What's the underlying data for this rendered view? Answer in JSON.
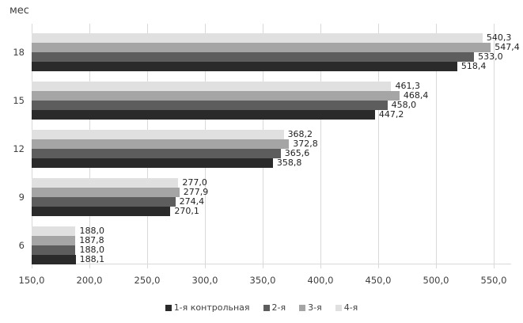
{
  "chart_data": {
    "type": "bar",
    "orientation": "horizontal",
    "axis_title": "мес",
    "categories": [
      "18",
      "15",
      "12",
      "9",
      "6"
    ],
    "series": [
      {
        "name": "1-я контрольная",
        "color": "#2a2a2a",
        "values": [
          518.4,
          447.2,
          358.8,
          270.1,
          188.1
        ]
      },
      {
        "name": "2-я",
        "color": "#5d5d5d",
        "values": [
          533.0,
          458.0,
          365.6,
          274.4,
          188.0
        ]
      },
      {
        "name": "3-я",
        "color": "#a5a5a5",
        "values": [
          547.4,
          468.4,
          372.8,
          277.9,
          187.8
        ]
      },
      {
        "name": "4-я",
        "color": "#e0e0e0",
        "values": [
          540.3,
          461.3,
          368.2,
          277.0,
          188.0
        ]
      }
    ],
    "xlim": [
      150,
      550
    ],
    "x_ticks": [
      150,
      200,
      250,
      300,
      350,
      400,
      450,
      500,
      550
    ],
    "tick_format": "one-decimal-comma",
    "value_labels_shown": true,
    "grid": true,
    "legend_position": "bottom",
    "colors": {
      "grid": "#d9d9d9",
      "axis": "#d9d9d9",
      "text": "#3f3f3f",
      "value_text": "#1f1f1f"
    }
  }
}
